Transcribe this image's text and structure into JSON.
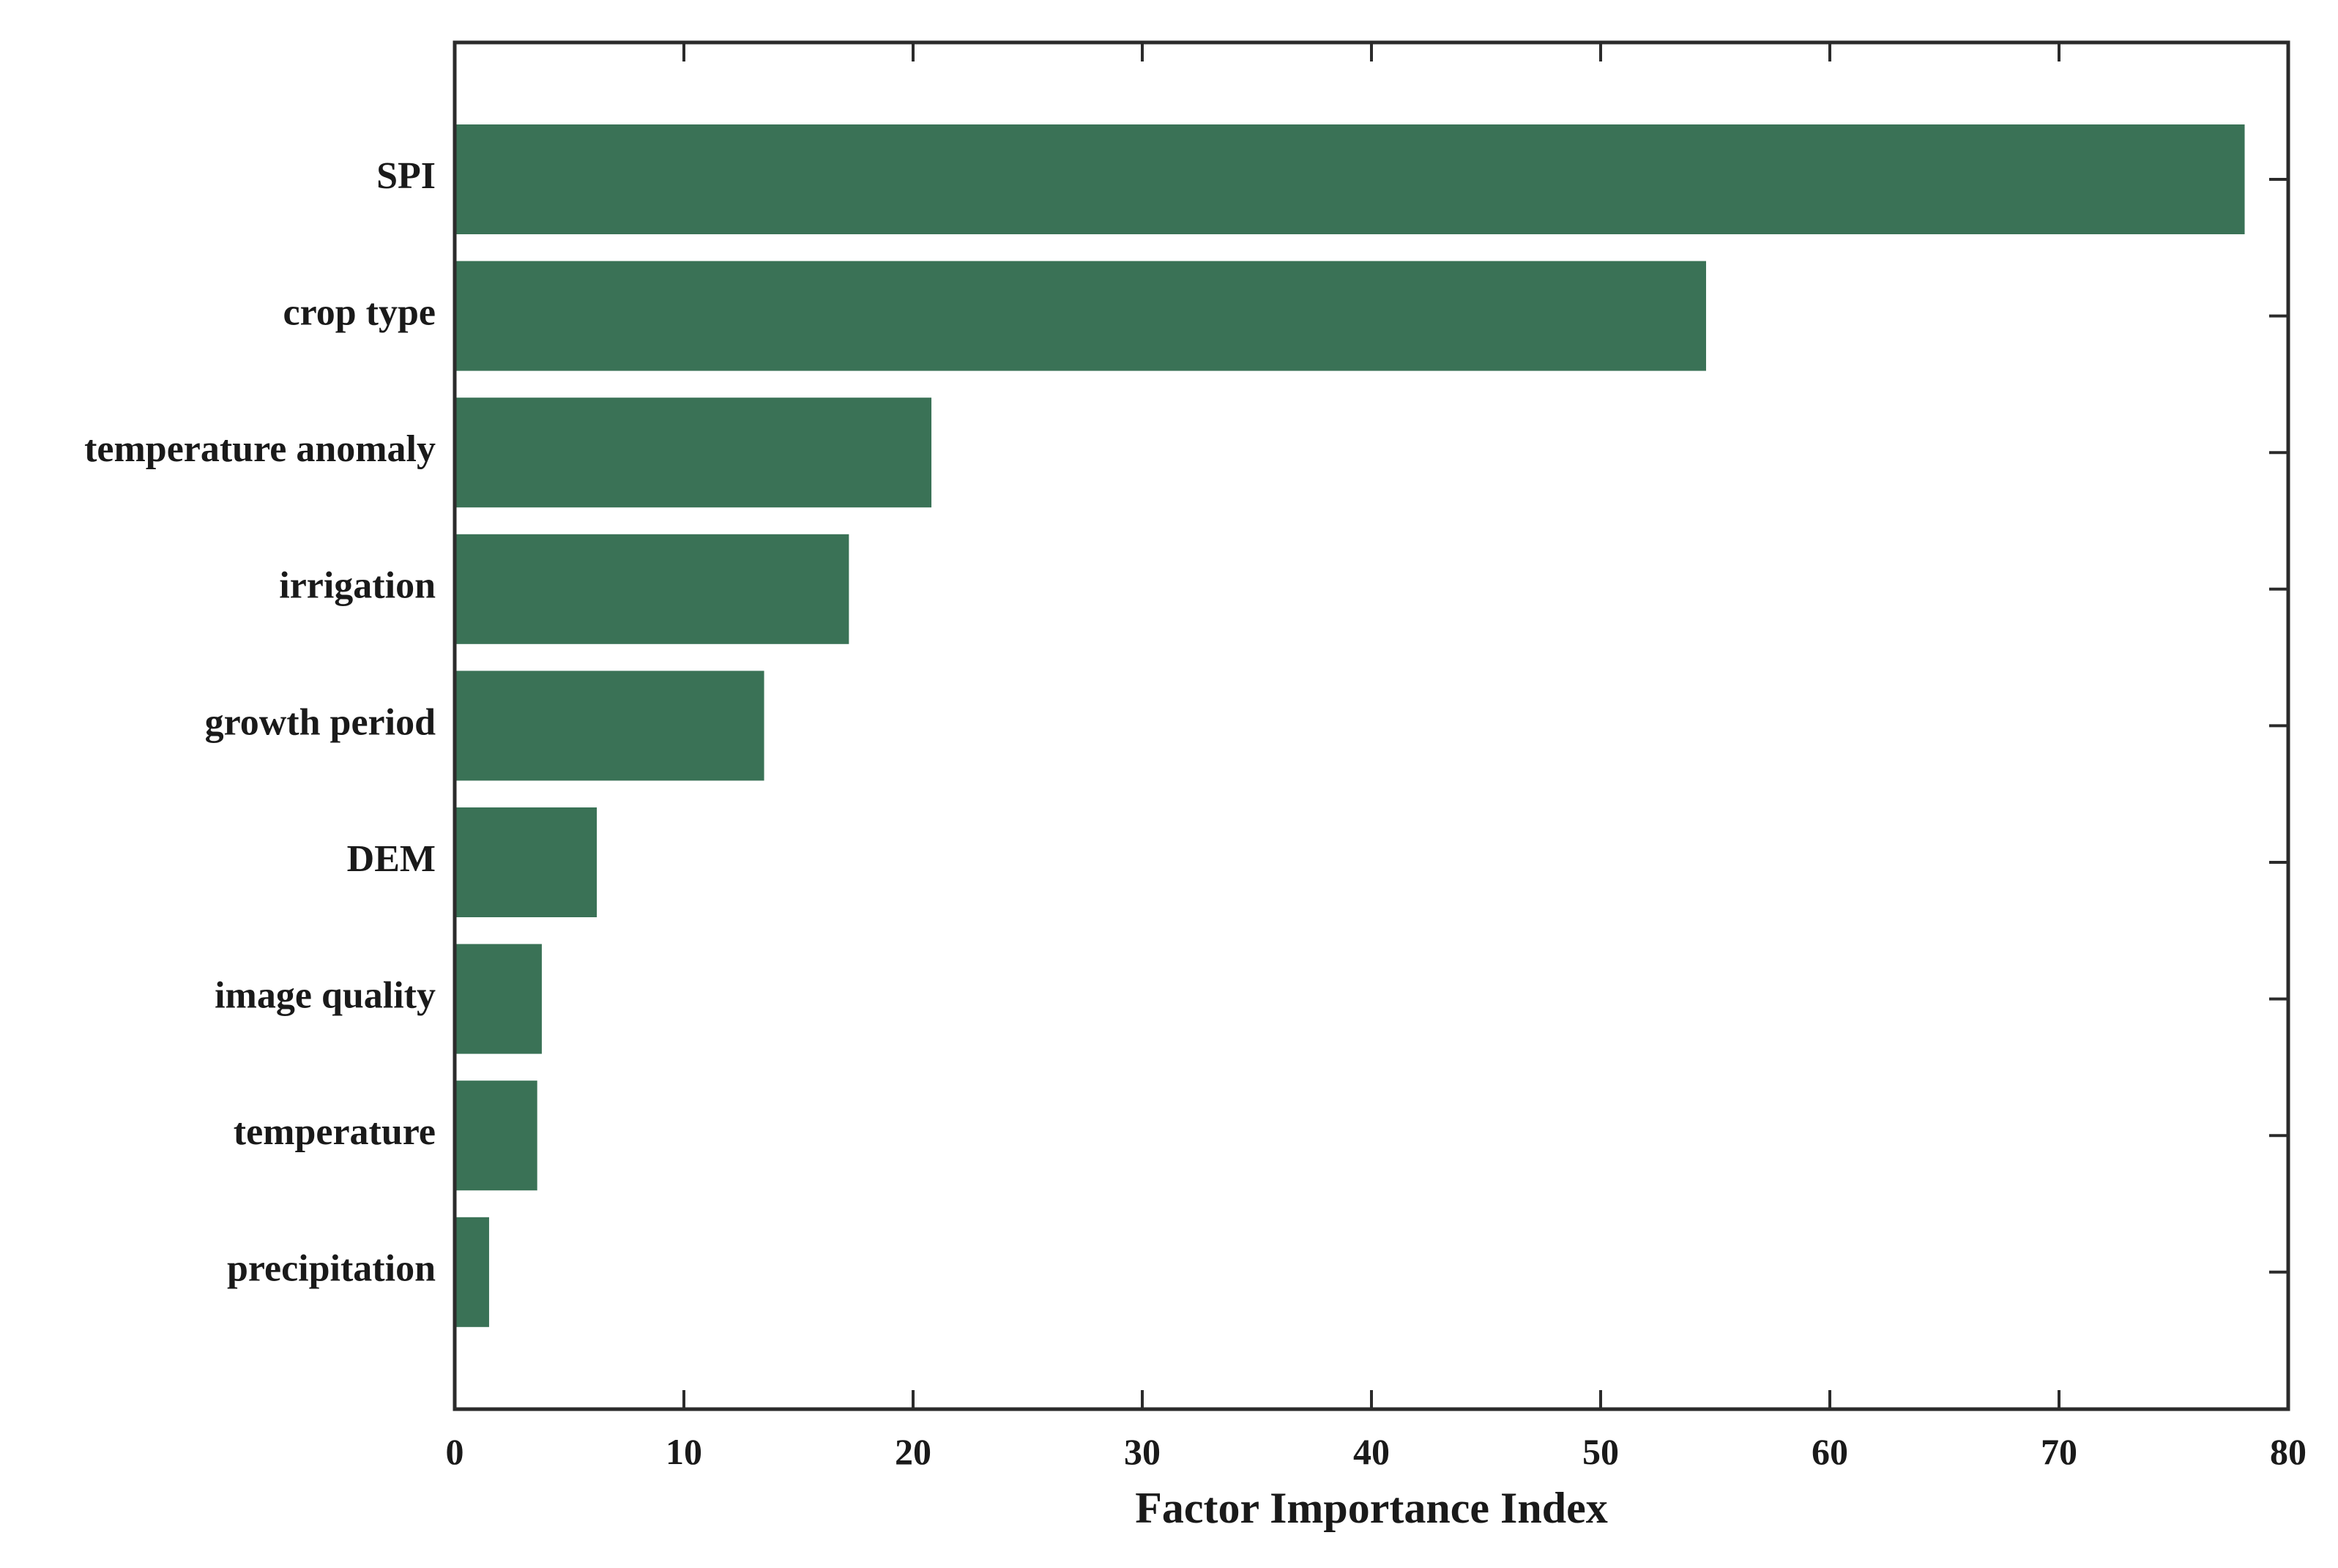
{
  "chart_data": {
    "type": "bar",
    "orientation": "horizontal",
    "categories": [
      "SPI",
      "crop type",
      "temperature anomaly",
      "irrigation",
      "growth period",
      "DEM",
      "image quality",
      "temperature",
      "precipitation"
    ],
    "values": [
      78.1,
      54.6,
      20.8,
      17.2,
      13.5,
      6.2,
      3.8,
      3.6,
      1.5
    ],
    "xlabel": "Factor Importance Index",
    "ylabel": "",
    "xlim": [
      0,
      80
    ],
    "xticks": [
      "0",
      "10",
      "20",
      "30",
      "40",
      "50",
      "60",
      "70",
      "80"
    ],
    "grid": false,
    "legend": "none",
    "bar_color": "#3a7256",
    "axis_color": "#2b2b2b"
  }
}
